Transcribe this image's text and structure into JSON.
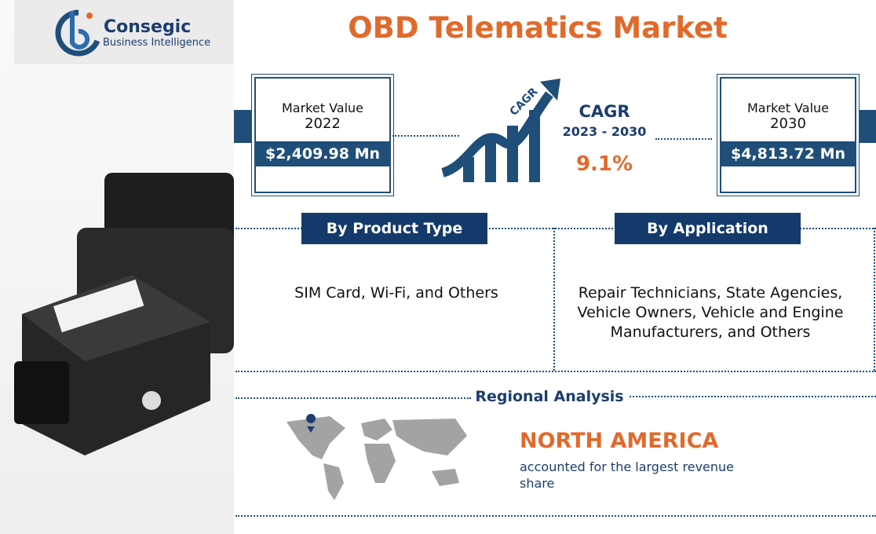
{
  "logo": {
    "name": "Consegic",
    "tagline": "Business Intelligence"
  },
  "header": {
    "title": "OBD Telematics Market"
  },
  "market_2022": {
    "label": "Market Value",
    "year": "2022",
    "value": "$2,409.98 Mn"
  },
  "cagr": {
    "arrow_label": "CAGR",
    "label": "CAGR",
    "period": "2023 - 2030",
    "value": "9.1%"
  },
  "market_2030": {
    "label": "Market Value",
    "year": "2030",
    "value": "$4,813.72 Mn"
  },
  "segments": [
    {
      "title": "By Product Type",
      "text": "SIM Card, Wi-Fi, and Others"
    },
    {
      "title": "By Application",
      "text": "Repair Technicians, State Agencies, Vehicle Owners, Vehicle and Engine Manufacturers, and Others"
    }
  ],
  "regional": {
    "title": "Regional Analysis",
    "region": "NORTH AMERICA",
    "text": "accounted for the largest revenue share"
  }
}
